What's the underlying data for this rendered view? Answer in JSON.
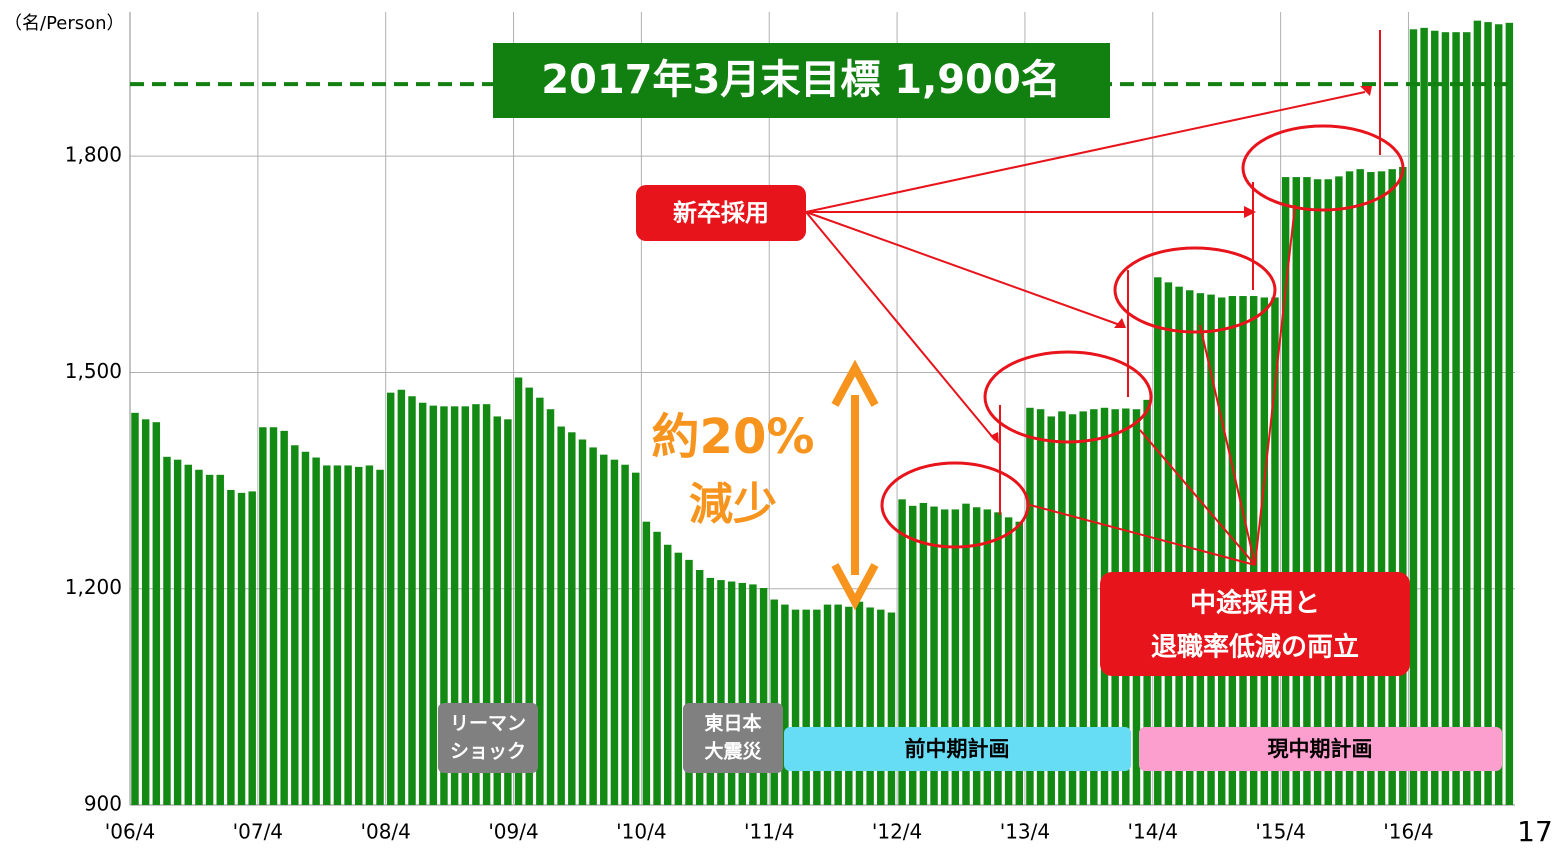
{
  "chart_data": {
    "type": "bar",
    "categories": [
      "'06/4",
      null,
      null,
      null,
      null,
      null,
      null,
      null,
      null,
      null,
      null,
      null,
      "'07/4",
      null,
      null,
      null,
      null,
      null,
      null,
      null,
      null,
      null,
      null,
      null,
      "'08/4",
      null,
      null,
      null,
      null,
      null,
      null,
      null,
      null,
      null,
      null,
      null,
      "'09/4",
      null,
      null,
      null,
      null,
      null,
      null,
      null,
      null,
      null,
      null,
      null,
      "'10/4",
      null,
      null,
      null,
      null,
      null,
      null,
      null,
      null,
      null,
      null,
      null,
      "'11/4",
      null,
      null,
      null,
      null,
      null,
      null,
      null,
      null,
      null,
      null,
      null,
      "'12/4",
      null,
      null,
      null,
      null,
      null,
      null,
      null,
      null,
      null,
      null,
      null,
      "'13/4",
      null,
      null,
      null,
      null,
      null,
      null,
      null,
      null,
      null,
      null,
      null,
      "'14/4",
      null,
      null,
      null,
      null,
      null,
      null,
      null,
      null,
      null,
      null,
      null,
      "'15/4",
      null,
      null,
      null,
      null,
      null,
      null,
      null,
      null,
      null,
      null,
      null,
      "'16/4",
      null,
      null,
      null,
      null,
      null,
      null,
      null,
      null,
      null
    ],
    "values": [
      1444,
      1435,
      1431,
      1383,
      1379,
      1372,
      1365,
      1358,
      1358,
      1337,
      1333,
      1335,
      1424,
      1424,
      1419,
      1399,
      1390,
      1382,
      1371,
      1371,
      1371,
      1369,
      1371,
      1365,
      1472,
      1476,
      1467,
      1458,
      1454,
      1453,
      1453,
      1453,
      1456,
      1456,
      1439,
      1435,
      1493,
      1479,
      1465,
      1449,
      1425,
      1417,
      1407,
      1396,
      1386,
      1379,
      1372,
      1361,
      1293,
      1279,
      1261,
      1250,
      1240,
      1226,
      1215,
      1212,
      1210,
      1208,
      1206,
      1201,
      1185,
      1178,
      1171,
      1171,
      1171,
      1178,
      1178,
      1175,
      1182,
      1174,
      1171,
      1167,
      1324,
      1315,
      1319,
      1314,
      1310,
      1310,
      1318,
      1313,
      1310,
      1306,
      1299,
      1293,
      1451,
      1449,
      1439,
      1446,
      1442,
      1446,
      1449,
      1451,
      1449,
      1450,
      1449,
      1462,
      1632,
      1625,
      1619,
      1614,
      1610,
      1608,
      1604,
      1606,
      1606,
      1606,
      1604,
      1604,
      1771,
      1771,
      1771,
      1768,
      1768,
      1772,
      1779,
      1782,
      1778,
      1779,
      1782,
      1785,
      1976,
      1978,
      1974,
      1972,
      1972,
      1972,
      1988,
      1986,
      1983,
      1985
    ],
    "color": "#138a13",
    "ylim": [
      900,
      2000
    ],
    "yticks": [
      900,
      {
        "value": 1200,
        "label": "1,200"
      },
      {
        "value": 1500,
        "label": "1,500"
      },
      {
        "value": 1800,
        "label": "1,800"
      }
    ],
    "grid": true,
    "unit_label": "（名/Person）",
    "target": {
      "value": 1900,
      "label": "2017年3月末目標  1,900名"
    },
    "annotations": {
      "new_grad": "新卒採用",
      "mid_career": [
        "中途採用と",
        "退職率低減の両立"
      ],
      "decrease": [
        "約20%",
        "減少"
      ],
      "lehman": [
        "リーマン",
        "ショック"
      ],
      "earthquake": [
        "東日本",
        "大震災"
      ],
      "prev_plan": "前中期計画",
      "current_plan": "現中期計画"
    }
  },
  "page_number": "17"
}
